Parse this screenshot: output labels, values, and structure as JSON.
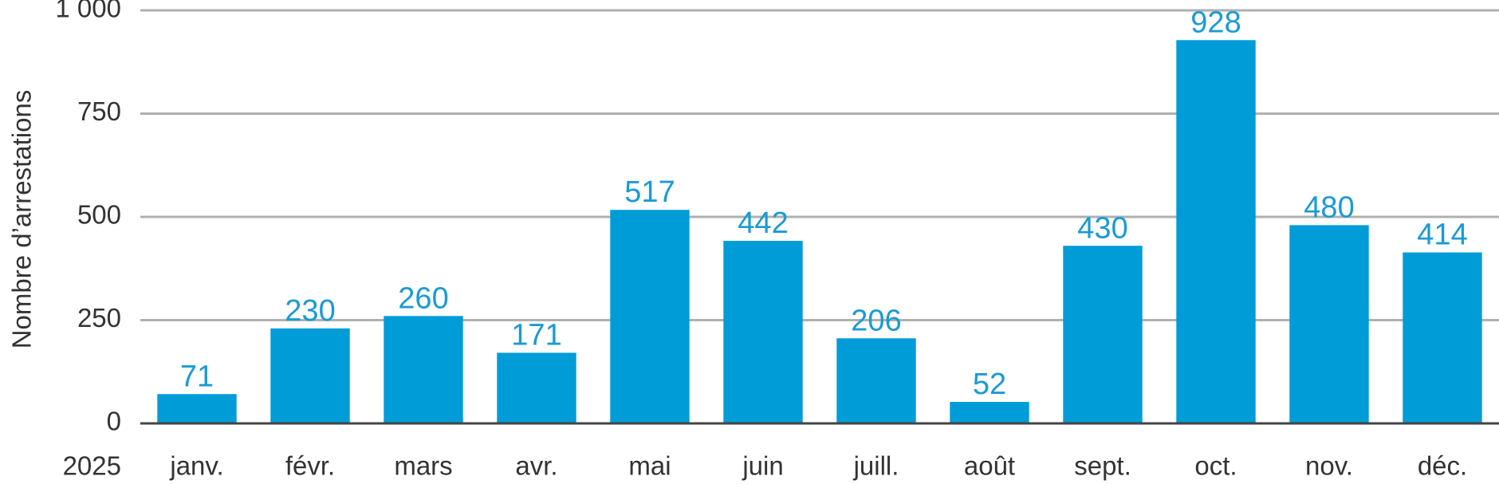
{
  "chart_data": {
    "type": "bar",
    "ylabel": "Nombre d’arrestations",
    "xlabel": "2025",
    "categories": [
      "janv.",
      "févr.",
      "mars",
      "avr.",
      "mai",
      "juin",
      "juill.",
      "août",
      "sept.",
      "oct.",
      "nov.",
      "déc."
    ],
    "values": [
      71,
      230,
      260,
      171,
      517,
      442,
      206,
      52,
      430,
      928,
      480,
      414
    ],
    "color": "#009cd8",
    "label_color": "#1a9ad6",
    "ylim": [
      0,
      1000
    ],
    "yticks": [
      0,
      250,
      500,
      750,
      {
        "value": 1000,
        "label": "1 000"
      }
    ],
    "grid": true
  }
}
